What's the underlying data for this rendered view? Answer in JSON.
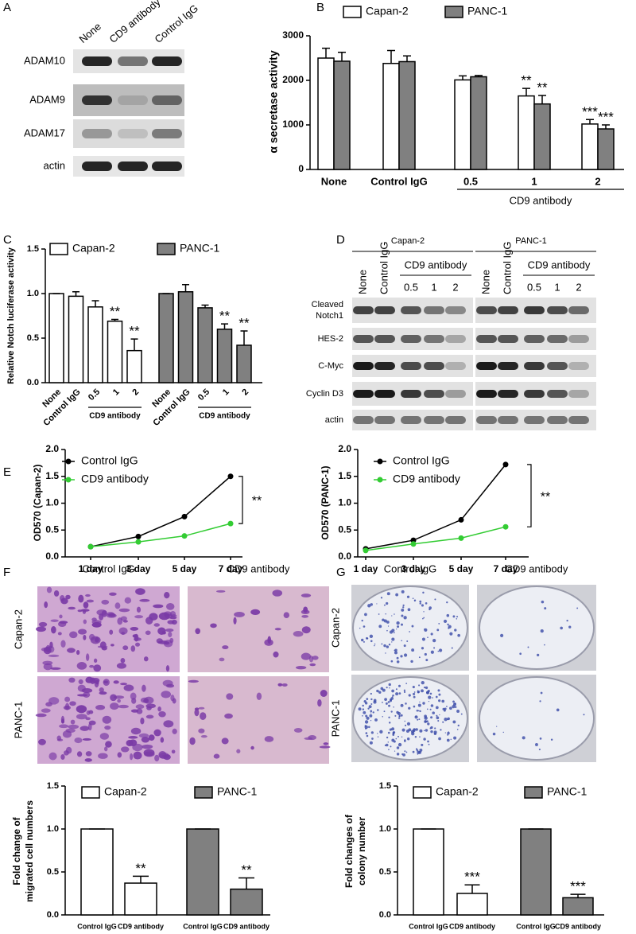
{
  "panels": [
    "A",
    "B",
    "C",
    "D",
    "E",
    "F",
    "G"
  ],
  "blot_a": {
    "columns": [
      "None",
      "CD9 antibody",
      "Control IgG"
    ],
    "rows": [
      "ADAM10",
      "ADAM9",
      "ADAM17",
      "actin"
    ]
  },
  "blot_d": {
    "cell_lines": [
      "Capan-2",
      "PANC-1"
    ],
    "columns": [
      "None",
      "Control IgG"
    ],
    "group_label": "CD9 antibody",
    "doses": [
      "0.5",
      "1",
      "2"
    ],
    "rows": [
      [
        "Cleaved",
        "Notch1"
      ],
      [
        "HES-2"
      ],
      [
        "C-Myc"
      ],
      [
        "Cyclin D3"
      ],
      [
        "actin"
      ]
    ]
  },
  "images_f": {
    "columns": [
      "Control IgG",
      "CD9 antibody"
    ],
    "rows": [
      "Capan-2",
      "PANC-1"
    ]
  },
  "images_g": {
    "columns": [
      "Control IgG",
      "CD9 antibody"
    ],
    "rows": [
      "Capan-2",
      "PANC-1"
    ]
  },
  "chart_data": [
    {
      "type": "bar",
      "ylabel": "α secretase activity",
      "categories": [
        "None",
        "Control IgG",
        "0.5",
        "1",
        "2"
      ],
      "group_label": "CD9 antibody",
      "series": [
        {
          "name": "Capan-2",
          "color": "#ffffff",
          "values": [
            2500,
            2380,
            2010,
            1650,
            1020
          ],
          "errors": [
            220,
            290,
            90,
            170,
            100
          ],
          "annotations": [
            null,
            null,
            null,
            "**",
            "***"
          ]
        },
        {
          "name": "PANC-1",
          "color": "#808080",
          "values": [
            2430,
            2420,
            2080,
            1470,
            910
          ],
          "errors": [
            200,
            130,
            30,
            190,
            90
          ],
          "annotations": [
            null,
            null,
            null,
            "**",
            "***"
          ]
        }
      ],
      "ylim": [
        0,
        3000
      ],
      "yticks": [
        0,
        1000,
        2000,
        3000
      ]
    },
    {
      "type": "bar",
      "ylabel": "Relative Notch luciferase activity",
      "categories": [
        "None",
        "Control IgG",
        "0.5",
        "1",
        "2"
      ],
      "group_label": "CD9 antibody",
      "series": [
        {
          "name": "Capan-2",
          "color": "#ffffff",
          "values": [
            1.0,
            0.97,
            0.85,
            0.69,
            0.36
          ],
          "errors": [
            0,
            0.05,
            0.07,
            0.02,
            0.13
          ],
          "annotations": [
            null,
            null,
            null,
            "**",
            "**"
          ]
        },
        {
          "name": "PANC-1",
          "color": "#808080",
          "values": [
            1.0,
            1.02,
            0.84,
            0.6,
            0.42
          ],
          "errors": [
            0,
            0.08,
            0.03,
            0.06,
            0.16
          ],
          "annotations": [
            null,
            null,
            null,
            "**",
            "**"
          ]
        }
      ],
      "ylim": [
        0,
        1.5
      ],
      "yticks": [
        {
          "value": 0,
          "label": "0.0"
        },
        0.5,
        {
          "value": 1,
          "label": "1.0"
        },
        1.5
      ]
    },
    {
      "type": "line",
      "ylabel": "OD570 (Capan-2)",
      "categories": [
        "1 day",
        "3 day",
        "5 day",
        "7 day"
      ],
      "annotation": "**",
      "series": [
        {
          "name": "Control IgG",
          "color": "#000000",
          "values": [
            0.19,
            0.38,
            0.75,
            1.5
          ]
        },
        {
          "name": "CD9 antibody",
          "color": "#33cc33",
          "values": [
            0.19,
            0.28,
            0.39,
            0.62
          ]
        }
      ],
      "ylim": [
        0,
        2
      ],
      "yticks": [
        {
          "value": 0,
          "label": "0.0"
        },
        0.5,
        {
          "value": 1,
          "label": "1.0"
        },
        1.5,
        {
          "value": 2,
          "label": "2.0"
        }
      ]
    },
    {
      "type": "line",
      "ylabel": "OD570 (PANC-1)",
      "categories": [
        "1 day",
        "3 day",
        "5 day",
        "7 day"
      ],
      "annotation": "**",
      "series": [
        {
          "name": "Control IgG",
          "color": "#000000",
          "values": [
            0.15,
            0.31,
            0.69,
            1.72
          ]
        },
        {
          "name": "CD9 antibody",
          "color": "#33cc33",
          "values": [
            0.12,
            0.24,
            0.35,
            0.56
          ]
        }
      ],
      "ylim": [
        0,
        2
      ],
      "yticks": [
        {
          "value": 0,
          "label": "0.0"
        },
        0.5,
        {
          "value": 1,
          "label": "1.0"
        },
        1.5,
        {
          "value": 2,
          "label": "2.0"
        }
      ]
    },
    {
      "type": "bar",
      "ylabel": [
        "Fold change of",
        "migrated cell numbers"
      ],
      "categories": [
        "Control IgG",
        "CD9 antibody"
      ],
      "series": [
        {
          "name": "Capan-2",
          "color": "#ffffff",
          "values": [
            1.0,
            0.37
          ],
          "errors": [
            0,
            0.08
          ],
          "annotations": [
            null,
            "**"
          ]
        },
        {
          "name": "PANC-1",
          "color": "#808080",
          "values": [
            1.0,
            0.3
          ],
          "errors": [
            0,
            0.13
          ],
          "annotations": [
            null,
            "**"
          ]
        }
      ],
      "ylim": [
        0,
        1.5
      ],
      "yticks": [
        {
          "value": 0,
          "label": "0.0"
        },
        0.5,
        {
          "value": 1,
          "label": "1.0"
        },
        1.5
      ]
    },
    {
      "type": "bar",
      "ylabel": [
        "Fold changes of",
        "colony number"
      ],
      "categories": [
        "Control IgG",
        "CD9 antibody"
      ],
      "series": [
        {
          "name": "Capan-2",
          "color": "#ffffff",
          "values": [
            1.0,
            0.25
          ],
          "errors": [
            0,
            0.1
          ],
          "annotations": [
            null,
            "***"
          ]
        },
        {
          "name": "PANC-1",
          "color": "#808080",
          "values": [
            1.0,
            0.2
          ],
          "errors": [
            0,
            0.04
          ],
          "annotations": [
            null,
            "***"
          ]
        }
      ],
      "ylim": [
        0,
        1.5
      ],
      "yticks": [
        {
          "value": 0,
          "label": "0.0"
        },
        0.5,
        {
          "value": 1,
          "label": "1.0"
        },
        1.5
      ]
    }
  ]
}
